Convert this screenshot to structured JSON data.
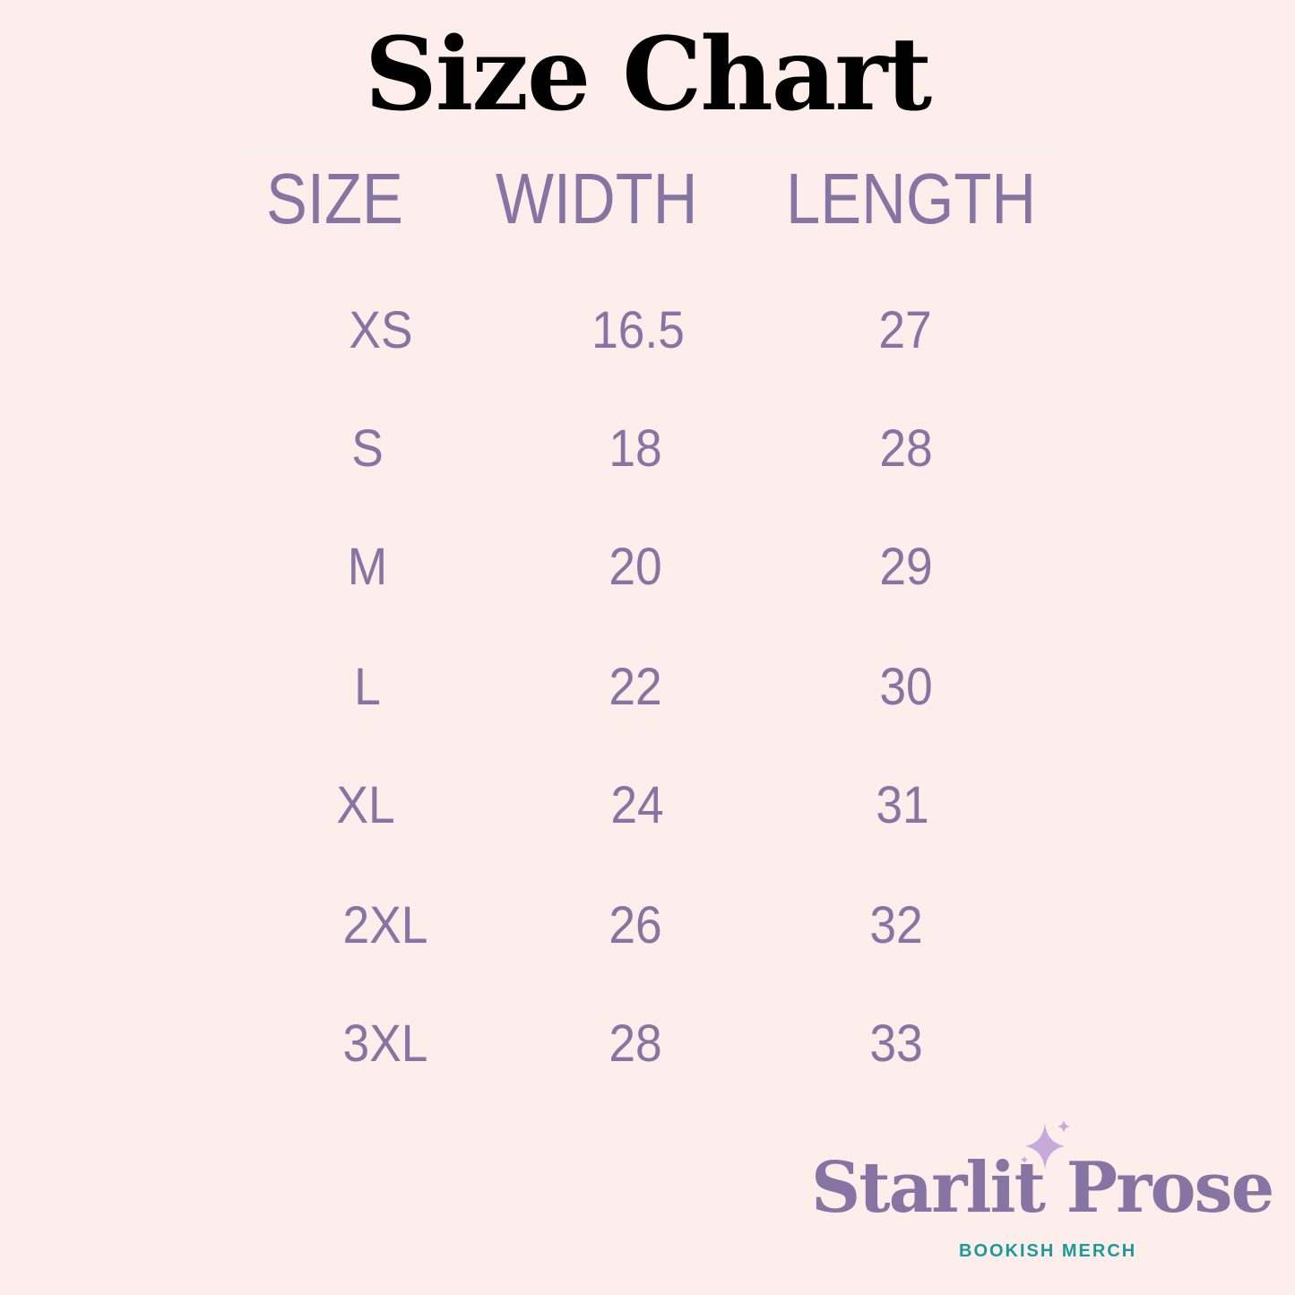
{
  "title": "Size Chart",
  "table": {
    "headers": [
      "SIZE",
      "WIDTH",
      "LENGTH"
    ],
    "rows": [
      {
        "size": "XS",
        "width": "16.5",
        "length": "27"
      },
      {
        "size": "S",
        "width": "18",
        "length": "28"
      },
      {
        "size": "M",
        "width": "20",
        "length": "29"
      },
      {
        "size": "L",
        "width": "22",
        "length": "30"
      },
      {
        "size": "XL",
        "width": "24",
        "length": "31"
      },
      {
        "size": "2XL",
        "width": "26",
        "length": "32"
      },
      {
        "size": "3XL",
        "width": "28",
        "length": "33"
      }
    ]
  },
  "logo": {
    "name": "Starlit Prose",
    "tagline": "BOOKISH MERCH",
    "icon": "sparkle-icon"
  },
  "colors": {
    "background": "#fdeeeb",
    "text": "#8675a3",
    "tagline": "#1a9a98",
    "sparkle": "#c9a9d9"
  }
}
